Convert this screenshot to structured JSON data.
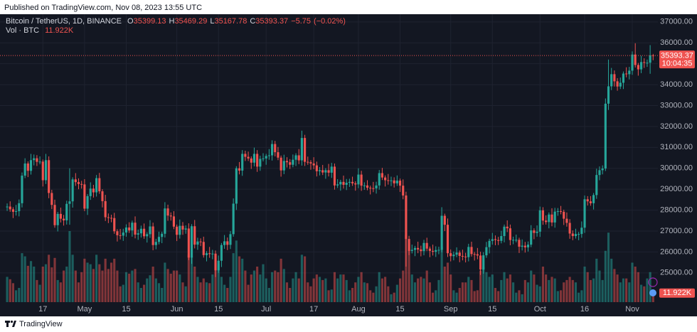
{
  "header": {
    "published": "Published on TradingView.com, Nov 08, 2023 13:55 UTC"
  },
  "footer": {
    "brand": "TradingView"
  },
  "chart_data": {
    "type": "candlestick",
    "title": "Bitcoin / TetherUS, 1D, BINANCE",
    "ohlc_labels": [
      "O",
      "H",
      "L",
      "C"
    ],
    "change": {
      "value": -5.75,
      "label": "−5.75"
    },
    "change_percent": {
      "value": -0.02,
      "label": "(−0.02%)"
    },
    "volume_title": "Vol · BTC",
    "volume_value_label": "11.922K",
    "countdown": "10:04:35",
    "up_color": "#26a69a",
    "down_color": "#ef5350",
    "grid": true,
    "xlim": [
      -2.4,
      218.6
    ],
    "xticks": [
      {
        "value": 12,
        "label": "17"
      },
      {
        "value": 26,
        "label": "May"
      },
      {
        "value": 40,
        "label": "15"
      },
      {
        "value": 57,
        "label": "Jun"
      },
      {
        "value": 71,
        "label": "15"
      },
      {
        "value": 87,
        "label": "Jul"
      },
      {
        "value": 103,
        "label": "17"
      },
      {
        "value": 118,
        "label": "Aug"
      },
      {
        "value": 132,
        "label": "15"
      },
      {
        "value": 149,
        "label": "Sep"
      },
      {
        "value": 163,
        "label": "15"
      },
      {
        "value": 179,
        "label": "Oct"
      },
      {
        "value": 194,
        "label": "16"
      },
      {
        "value": 210,
        "label": "Nov"
      }
    ],
    "ylim": [
      23600,
      37300
    ],
    "yticks": [
      {
        "value": 25000,
        "label": "25000.00"
      },
      {
        "value": 26000,
        "label": "26000.00"
      },
      {
        "value": 27000,
        "label": "27000.00"
      },
      {
        "value": 28000,
        "label": "28000.00"
      },
      {
        "value": 29000,
        "label": "29000.00"
      },
      {
        "value": 30000,
        "label": "30000.00"
      },
      {
        "value": 31000,
        "label": "31000.00"
      },
      {
        "value": 32000,
        "label": "32000.00"
      },
      {
        "value": 33000,
        "label": "33000.00"
      },
      {
        "value": 34000,
        "label": "34000.00"
      },
      {
        "value": 35000,
        "label": "35000.00"
      },
      {
        "value": 36000,
        "label": "36000.00"
      },
      {
        "value": 37000,
        "label": "37000.00"
      }
    ],
    "open": [
      28160,
      28170,
      28040,
      27920,
      27950,
      28330,
      29650,
      30230,
      29880,
      30390,
      30480,
      30310,
      30320,
      29430,
      30390,
      28820,
      28250,
      27280,
      27820,
      27590,
      27510,
      28300,
      28420,
      29470,
      29340,
      29250,
      29230,
      28070,
      28670,
      29030,
      28850,
      29530,
      28900,
      28430,
      27660,
      27630,
      27620,
      26990,
      26800,
      26780,
      26930,
      27170,
      27030,
      27400,
      26830,
      26890,
      27110,
      26750,
      26850,
      27220,
      26330,
      26480,
      26720,
      26870,
      28080,
      27740,
      27700,
      27210,
      26820,
      27250,
      27070,
      27120,
      25730,
      27230,
      26350,
      26500,
      26480,
      25850,
      25940,
      25900,
      25920,
      25120,
      25580,
      26330,
      26510,
      26340,
      26850,
      28310,
      30000,
      29890,
      30690,
      30550,
      30470,
      30270,
      30690,
      30080,
      30450,
      30470,
      30590,
      30620,
      31160,
      30770,
      30510,
      29900,
      30350,
      30290,
      30170,
      30410,
      30620,
      30380,
      31450,
      30310,
      30290,
      30230,
      30140,
      29860,
      29910,
      29800,
      29910,
      29790,
      30080,
      29180,
      29230,
      29350,
      29210,
      29310,
      29350,
      29280,
      29230,
      29700,
      29170,
      29180,
      29070,
      29050,
      29040,
      29180,
      29770,
      29560,
      29430,
      29400,
      29420,
      29280,
      29410,
      29170,
      28700,
      26620,
      26050,
      26100,
      26190,
      26120,
      26040,
      26430,
      26160,
      26050,
      26010,
      26090,
      26100,
      27730,
      27300,
      25940,
      25800,
      25870,
      25970,
      25810,
      25780,
      25750,
      26240,
      25900,
      25890,
      25830,
      25160,
      25840,
      26230,
      26530,
      26610,
      26570,
      26530,
      26760,
      27210,
      27130,
      26570,
      26580,
      26580,
      26250,
      26300,
      26220,
      26350,
      27030,
      26910,
      26970,
      27990,
      27500,
      27430,
      27790,
      27410,
      27930,
      27950,
      27920,
      27590,
      27390,
      26880,
      26760,
      26860,
      26860,
      27160,
      28520,
      28420,
      28330,
      28720,
      29680,
      29910,
      29990,
      33090,
      33920,
      34500,
      34160,
      33910,
      34090,
      34530,
      34500,
      34670,
      35440,
      34940,
      34730,
      35080,
      35050,
      35050,
      35399.13
    ],
    "high": [
      28320,
      28420,
      28140,
      28250,
      28510,
      29800,
      30480,
      30330,
      30690,
      30660,
      30630,
      30570,
      30420,
      30690,
      30570,
      28970,
      28500,
      27920,
      28120,
      27770,
      28450,
      30000,
      29570,
      29770,
      29520,
      29400,
      29480,
      28770,
      29330,
      29210,
      29680,
      29780,
      29000,
      28730,
      27840,
      27780,
      27870,
      27090,
      27100,
      27110,
      27320,
      27420,
      27500,
      27700,
      27070,
      27260,
      27360,
      26950,
      27520,
      27400,
      26630,
      26970,
      26970,
      28380,
      28260,
      27890,
      27950,
      27310,
      27550,
      27430,
      27270,
      27370,
      27330,
      27530,
      26680,
      26650,
      26730,
      26040,
      26240,
      26100,
      26070,
      25830,
      26430,
      26810,
      26690,
      27000,
      28560,
      30100,
      30300,
      30870,
      30840,
      30800,
      30570,
      30990,
      30870,
      30600,
      30720,
      30690,
      30920,
      31340,
      31310,
      31020,
      30610,
      30650,
      30530,
      30440,
      30660,
      30720,
      30920,
      31800,
      31600,
      30560,
      30390,
      30530,
      30320,
      30060,
      30160,
      30010,
      30210,
      30260,
      30230,
      29480,
      29450,
      29650,
      29490,
      29500,
      29600,
      29380,
      30000,
      29880,
      29330,
      29430,
      29170,
      29350,
      29360,
      29920,
      30020,
      29660,
      29730,
      29600,
      29570,
      29660,
      29510,
      29470,
      28880,
      26770,
      26350,
      26290,
      26490,
      26300,
      26580,
      26680,
      26260,
      26350,
      26270,
      26250,
      28140,
      27830,
      27600,
      26120,
      26020,
      26220,
      26070,
      26110,
      25960,
      26390,
      26490,
      26000,
      26190,
      26010,
      25990,
      26480,
      26630,
      26910,
      26790,
      26720,
      27010,
      27310,
      27510,
      27310,
      26730,
      26830,
      26680,
      26600,
      26480,
      26500,
      27280,
      27130,
      27270,
      28170,
      28140,
      27750,
      27890,
      28090,
      28110,
      28100,
      28200,
      28020,
      27890,
      27570,
      27030,
      27110,
      26960,
      27460,
      28700,
      28670,
      28670,
      28820,
      29980,
      30090,
      30140,
      33340,
      35200,
      34800,
      34680,
      34310,
      34340,
      34630,
      34830,
      34850,
      35590,
      35980,
      35040,
      35380,
      35260,
      35200,
      35890,
      35469.29
    ],
    "low": [
      27960,
      27920,
      27620,
      27740,
      27700,
      28130,
      29530,
      29580,
      29700,
      30140,
      30110,
      30190,
      29130,
      29250,
      28570,
      28050,
      27160,
      26980,
      27410,
      27260,
      27310,
      27300,
      28120,
      29160,
      29000,
      29030,
      27950,
      27770,
      28490,
      28600,
      28650,
      28780,
      28130,
      27480,
      27380,
      27420,
      26870,
      26500,
      26600,
      26530,
      26730,
      26910,
      26730,
      26650,
      26580,
      26690,
      26630,
      26450,
      26670,
      26080,
      26130,
      26360,
      26420,
      26690,
      27490,
      27500,
      27090,
      26520,
      26640,
      26820,
      26870,
      25610,
      25430,
      26170,
      26100,
      26280,
      25730,
      25550,
      25720,
      25650,
      24800,
      25000,
      25280,
      26150,
      26090,
      26140,
      26730,
      28010,
      29710,
      29640,
      30350,
      30350,
      29970,
      30090,
      29830,
      29880,
      30330,
      30170,
      30410,
      30370,
      30570,
      30390,
      29600,
      29720,
      30040,
      29970,
      30050,
      30110,
      30200,
      30130,
      30110,
      30170,
      29930,
      29960,
      29610,
      29660,
      29680,
      29500,
      29610,
      29540,
      28980,
      29060,
      28930,
      29030,
      28960,
      29110,
      29160,
      28930,
      29050,
      28920,
      28970,
      28950,
      28750,
      28860,
      28790,
      28980,
      29440,
      29130,
      29220,
      29150,
      29080,
      29160,
      28870,
      28520,
      25300,
      25850,
      25930,
      25800,
      25940,
      25790,
      25840,
      26040,
      25750,
      25830,
      25760,
      25890,
      25980,
      27000,
      25760,
      25550,
      25600,
      25750,
      25510,
      25600,
      25500,
      25550,
      25780,
      25590,
      25650,
      24900,
      24960,
      25720,
      25930,
      26350,
      26320,
      26330,
      26410,
      26460,
      26950,
      26320,
      26370,
      26460,
      25950,
      26070,
      25970,
      26020,
      26230,
      26610,
      26730,
      26720,
      27300,
      27310,
      27130,
      27230,
      27160,
      27730,
      27800,
      27290,
      27210,
      26630,
      26560,
      26640,
      26560,
      26680,
      26910,
      28220,
      28210,
      28030,
      28540,
      29430,
      29710,
      29870,
      32790,
      33740,
      33910,
      33710,
      33790,
      33790,
      34350,
      34250,
      34470,
      34820,
      34430,
      34550,
      34800,
      34850,
      34520,
      35167.78
    ],
    "close": [
      28170,
      28040,
      27920,
      27950,
      28330,
      29650,
      30230,
      29880,
      30390,
      30480,
      30310,
      30320,
      29430,
      30390,
      28820,
      28250,
      27280,
      27820,
      27590,
      27510,
      28300,
      28420,
      29470,
      29340,
      29250,
      29230,
      28070,
      28670,
      29030,
      28850,
      29530,
      28900,
      28430,
      27660,
      27630,
      27620,
      26990,
      26800,
      26780,
      26930,
      27170,
      27030,
      27400,
      26830,
      26890,
      27110,
      26750,
      26850,
      27220,
      26330,
      26480,
      26720,
      26870,
      28080,
      27740,
      27700,
      27210,
      26820,
      27250,
      27070,
      27120,
      25730,
      27230,
      26350,
      26500,
      26480,
      25850,
      25940,
      25900,
      25920,
      25120,
      25580,
      26330,
      26510,
      26340,
      26850,
      28310,
      30000,
      29890,
      30690,
      30550,
      30470,
      30270,
      30690,
      30080,
      30450,
      30470,
      30590,
      30620,
      31160,
      30770,
      30510,
      29900,
      30350,
      30290,
      30170,
      30410,
      30620,
      30380,
      31450,
      30310,
      30290,
      30230,
      30140,
      29860,
      29910,
      29800,
      29910,
      29790,
      30080,
      29180,
      29230,
      29350,
      29210,
      29310,
      29350,
      29280,
      29230,
      29700,
      29170,
      29180,
      29070,
      29050,
      29040,
      29180,
      29770,
      29560,
      29430,
      29400,
      29420,
      29280,
      29410,
      29170,
      28700,
      26620,
      26050,
      26100,
      26190,
      26120,
      26040,
      26430,
      26160,
      26050,
      26010,
      26090,
      26100,
      27730,
      27300,
      25940,
      25800,
      25870,
      25970,
      25810,
      25780,
      25750,
      26240,
      25900,
      25890,
      25830,
      25160,
      25840,
      26230,
      26530,
      26610,
      26570,
      26530,
      26760,
      27210,
      27130,
      26570,
      26580,
      26580,
      26250,
      26300,
      26220,
      26350,
      27030,
      26910,
      26970,
      27990,
      27500,
      27430,
      27790,
      27410,
      27930,
      27950,
      27920,
      27590,
      27390,
      26880,
      26760,
      26860,
      26860,
      27160,
      28520,
      28420,
      28330,
      28720,
      29680,
      29910,
      29990,
      33090,
      33920,
      34500,
      34160,
      33910,
      34090,
      34530,
      34500,
      34670,
      35440,
      34940,
      34730,
      35080,
      35050,
      35050,
      35399.12,
      35393.37
    ],
    "volume": [
      32000,
      29000,
      24000,
      15000,
      18000,
      62000,
      58000,
      46000,
      52000,
      45000,
      28000,
      22000,
      45000,
      48000,
      60000,
      44000,
      56000,
      28000,
      25000,
      40000,
      45000,
      90000,
      60000,
      40000,
      25000,
      38000,
      55000,
      50000,
      48000,
      42000,
      60000,
      48000,
      40000,
      55000,
      42000,
      50000,
      55000,
      40000,
      20000,
      22000,
      38000,
      36000,
      40000,
      42000,
      25000,
      18000,
      22000,
      30000,
      34000,
      45000,
      30000,
      24000,
      18000,
      50000,
      42000,
      36000,
      40000,
      40000,
      35000,
      25000,
      20000,
      60000,
      58000,
      45000,
      32000,
      25000,
      30000,
      25000,
      24000,
      35000,
      50000,
      48000,
      32000,
      22000,
      18000,
      32000,
      62000,
      78000,
      58000,
      55000,
      40000,
      22000,
      35000,
      40000,
      45000,
      35000,
      48000,
      30000,
      18000,
      38000,
      40000,
      38000,
      55000,
      42000,
      25000,
      18000,
      30000,
      38000,
      30000,
      60000,
      58000,
      25000,
      20000,
      30000,
      35000,
      32000,
      28000,
      30000,
      15000,
      16000,
      38000,
      30000,
      35000,
      35000,
      28000,
      15000,
      18000,
      25000,
      32000,
      38000,
      25000,
      24000,
      15000,
      12000,
      20000,
      38000,
      30000,
      32000,
      20000,
      10000,
      12000,
      22000,
      30000,
      40000,
      85000,
      75000,
      35000,
      25000,
      30000,
      32000,
      30000,
      40000,
      25000,
      12000,
      15000,
      28000,
      70000,
      45000,
      50000,
      35000,
      15000,
      12000,
      18000,
      25000,
      25000,
      32000,
      28000,
      14000,
      15000,
      40000,
      45000,
      38000,
      32000,
      35000,
      18000,
      14000,
      28000,
      38000,
      30000,
      35000,
      25000,
      12000,
      15000,
      10000,
      28000,
      25000,
      40000,
      35000,
      22000,
      20000,
      45000,
      35000,
      28000,
      32000,
      30000,
      14000,
      15000,
      25000,
      28000,
      32000,
      28000,
      25000,
      12000,
      15000,
      45000,
      38000,
      28000,
      30000,
      55000,
      40000,
      28000,
      65000,
      88000,
      55000,
      42000,
      35000,
      25000,
      30000,
      30000,
      25000,
      50000,
      45000,
      38000,
      22000,
      20000,
      30000,
      38000,
      11922
    ]
  }
}
